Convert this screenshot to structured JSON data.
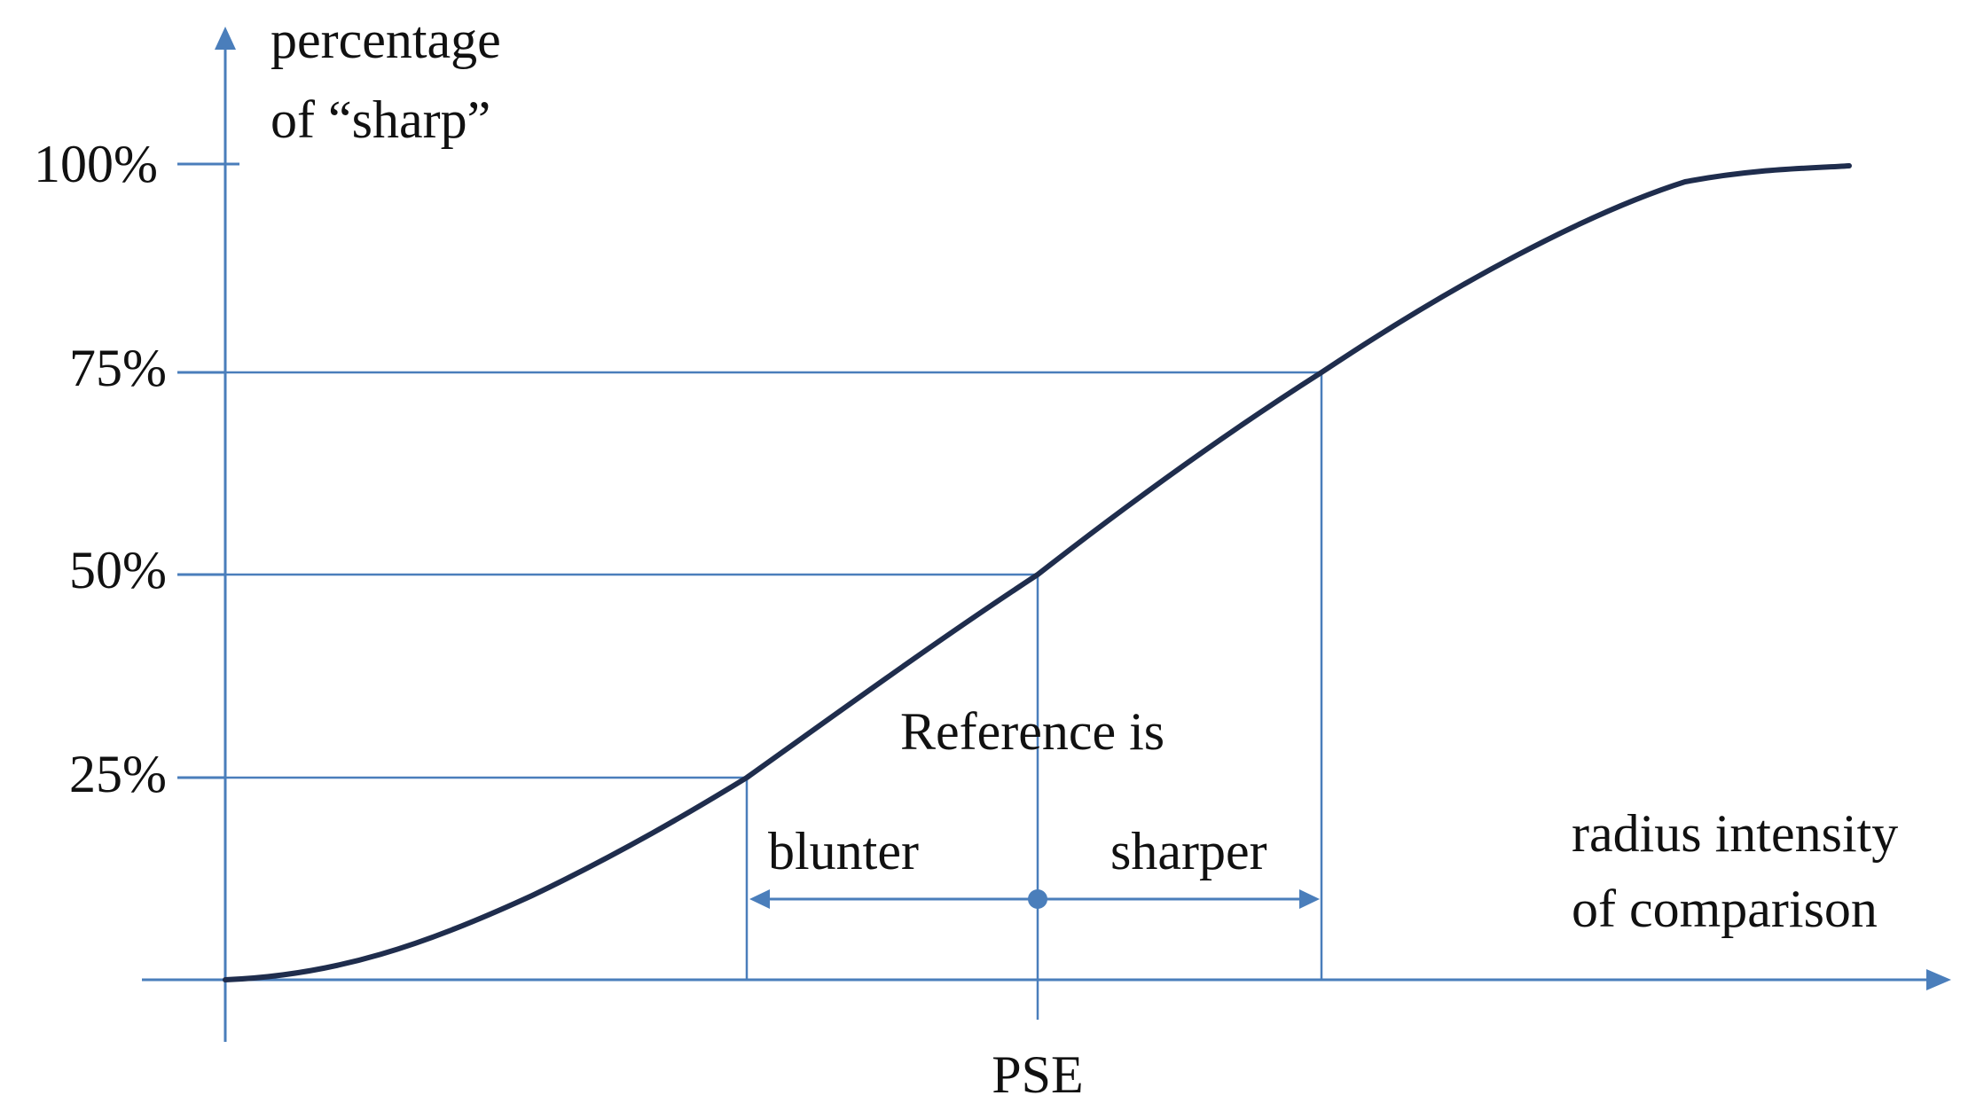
{
  "y_axis": {
    "label_line1": "percentage",
    "label_line2": "of “sharp”",
    "ticks": [
      "100%",
      "75%",
      "50%",
      "25%"
    ]
  },
  "x_axis": {
    "label_line1": "radius intensity",
    "label_line2": "of comparison",
    "pse_label": "PSE"
  },
  "annotations": {
    "reference": "Reference is",
    "blunter": "blunter",
    "sharper": "sharper"
  },
  "colors": {
    "axis": "#4a7ebb",
    "curve": "#1f2d4d",
    "text": "#111111"
  }
}
